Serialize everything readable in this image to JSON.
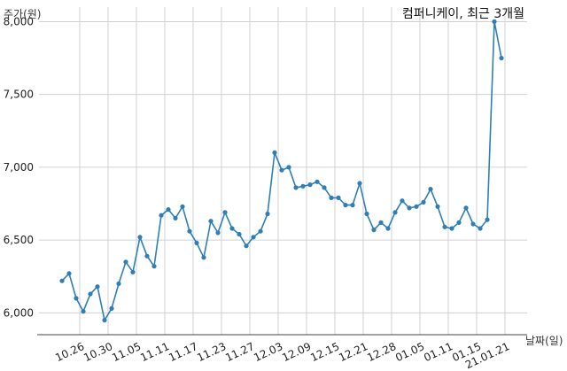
{
  "chart_data": {
    "type": "line",
    "title": "컴퍼니케이, 최근 3개월",
    "xlabel": "날짜(일)",
    "ylabel": "주가(원)",
    "ylim": [
      5850,
      8100
    ],
    "yticks": [
      "6,000",
      "6,500",
      "7,000",
      "7,500",
      "8,000"
    ],
    "ytick_values": [
      6000,
      6500,
      7000,
      7500,
      8000
    ],
    "xticks": [
      "10.26",
      "10.30",
      "11.05",
      "11.11",
      "11.17",
      "11.23",
      "11.27",
      "12.03",
      "12.09",
      "12.15",
      "12.21",
      "12.28",
      "01.05",
      "01.11",
      "01.15",
      "21.01.21"
    ],
    "xtick_index": [
      2.5,
      6.5,
      10.5,
      14.5,
      18.5,
      22.5,
      26.5,
      30.5,
      34.5,
      38.5,
      42.5,
      46.5,
      50.5,
      54.5,
      58.5,
      62.5
    ],
    "grid": true,
    "line_color": "#2f7fb5",
    "series": [
      {
        "values": [
          6220,
          6270,
          6100,
          6010,
          6130,
          6180,
          5950,
          6030,
          6200,
          6350,
          6280,
          6520,
          6390,
          6320,
          6670,
          6710,
          6650,
          6730,
          6560,
          6480,
          6380,
          6630,
          6550,
          6690,
          6580,
          6540,
          6460,
          6520,
          6560,
          6680,
          7100,
          6980,
          7000,
          6860,
          6870,
          6880,
          6900,
          6860,
          6790,
          6790,
          6740,
          6740,
          6890,
          6680,
          6570,
          6620,
          6580,
          6690,
          6770,
          6720,
          6730,
          6760,
          6850,
          6730,
          6590,
          6580,
          6620,
          6720,
          6610,
          6580,
          6640,
          8000,
          7750
        ]
      }
    ]
  }
}
